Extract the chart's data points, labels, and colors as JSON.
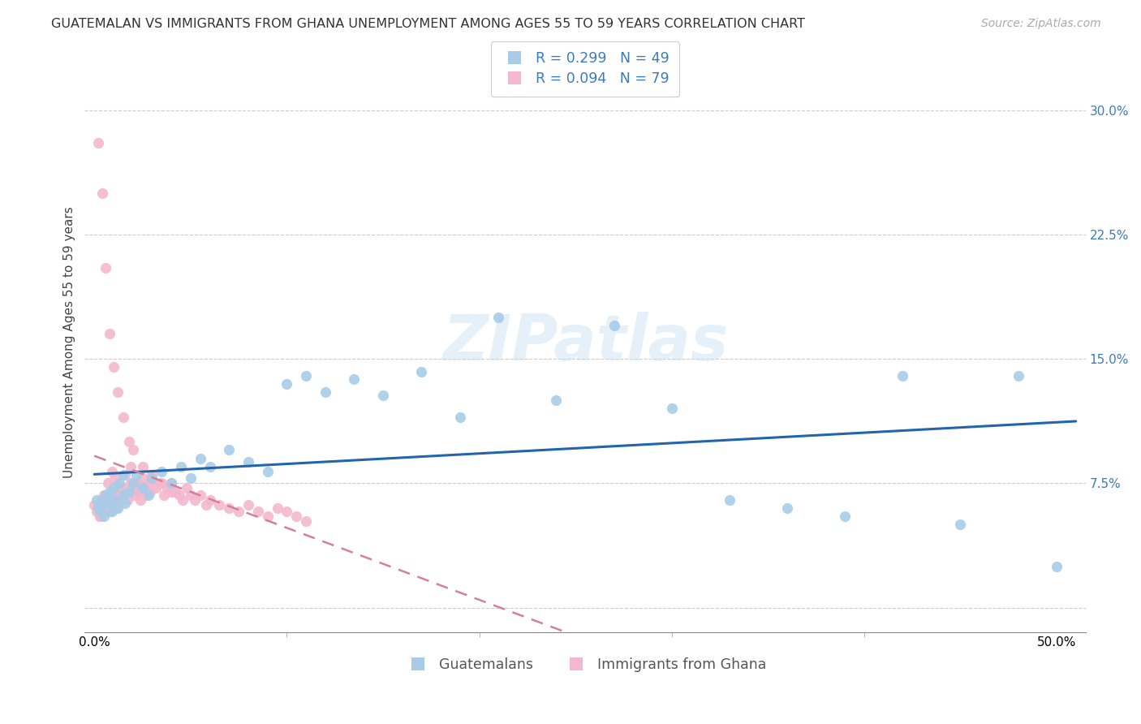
{
  "title": "GUATEMALAN VS IMMIGRANTS FROM GHANA UNEMPLOYMENT AMONG AGES 55 TO 59 YEARS CORRELATION CHART",
  "source": "Source: ZipAtlas.com",
  "ylabel_label": "Unemployment Among Ages 55 to 59 years",
  "yticks": [
    0.0,
    0.075,
    0.15,
    0.225,
    0.3
  ],
  "ytick_labels": [
    "",
    "7.5%",
    "15.0%",
    "22.5%",
    "30.0%"
  ],
  "xlim": [
    -0.005,
    0.515
  ],
  "ylim": [
    -0.015,
    0.335
  ],
  "watermark": "ZIPatlas",
  "legend_box": [
    {
      "label": "R = 0.299   N = 49",
      "color": "#a8cce8"
    },
    {
      "label": "R = 0.094   N = 79",
      "color": "#f4b8ce"
    }
  ],
  "legend_labels": [
    "Guatemalans",
    "Immigrants from Ghana"
  ],
  "blue_color": "#a8cce8",
  "pink_color": "#f4b8ce",
  "blue_line_color": "#2166ac",
  "pink_line_color": "#d4809a",
  "title_fontsize": 11.5,
  "axis_label_fontsize": 11,
  "tick_fontsize": 11,
  "source_fontsize": 10,
  "guatemalan_x": [
    0.001,
    0.002,
    0.003,
    0.004,
    0.005,
    0.006,
    0.007,
    0.008,
    0.009,
    0.01,
    0.011,
    0.012,
    0.013,
    0.015,
    0.016,
    0.018,
    0.02,
    0.022,
    0.025,
    0.028,
    0.03,
    0.035,
    0.04,
    0.045,
    0.05,
    0.055,
    0.06,
    0.07,
    0.08,
    0.09,
    0.1,
    0.11,
    0.12,
    0.135,
    0.15,
    0.17,
    0.19,
    0.21,
    0.24,
    0.27,
    0.3,
    0.33,
    0.36,
    0.39,
    0.42,
    0.45,
    0.48,
    0.5,
    0.015
  ],
  "guatemalan_y": [
    0.065,
    0.06,
    0.058,
    0.062,
    0.055,
    0.068,
    0.063,
    0.07,
    0.058,
    0.072,
    0.065,
    0.06,
    0.075,
    0.068,
    0.063,
    0.07,
    0.075,
    0.08,
    0.072,
    0.068,
    0.078,
    0.082,
    0.075,
    0.085,
    0.078,
    0.09,
    0.085,
    0.095,
    0.088,
    0.082,
    0.135,
    0.14,
    0.13,
    0.138,
    0.128,
    0.142,
    0.115,
    0.175,
    0.125,
    0.17,
    0.12,
    0.065,
    0.06,
    0.055,
    0.14,
    0.05,
    0.14,
    0.025,
    0.08
  ],
  "ghana_x": [
    0.0,
    0.001,
    0.002,
    0.003,
    0.004,
    0.005,
    0.006,
    0.007,
    0.008,
    0.009,
    0.01,
    0.011,
    0.012,
    0.013,
    0.014,
    0.015,
    0.016,
    0.017,
    0.018,
    0.019,
    0.02,
    0.021,
    0.022,
    0.023,
    0.024,
    0.025,
    0.026,
    0.027,
    0.028,
    0.029,
    0.03,
    0.032,
    0.034,
    0.036,
    0.038,
    0.04,
    0.042,
    0.044,
    0.046,
    0.048,
    0.05,
    0.052,
    0.055,
    0.058,
    0.06,
    0.065,
    0.07,
    0.075,
    0.08,
    0.085,
    0.09,
    0.095,
    0.1,
    0.105,
    0.11,
    0.002,
    0.004,
    0.006,
    0.008,
    0.01,
    0.012,
    0.015,
    0.018,
    0.02,
    0.025,
    0.03,
    0.035,
    0.04,
    0.002,
    0.003,
    0.005,
    0.007,
    0.009,
    0.011,
    0.013,
    0.016,
    0.019,
    0.022,
    0.027
  ],
  "ghana_y": [
    0.062,
    0.058,
    0.06,
    0.055,
    0.065,
    0.06,
    0.058,
    0.063,
    0.058,
    0.068,
    0.065,
    0.06,
    0.068,
    0.065,
    0.07,
    0.072,
    0.068,
    0.065,
    0.07,
    0.075,
    0.072,
    0.068,
    0.075,
    0.07,
    0.065,
    0.078,
    0.072,
    0.068,
    0.075,
    0.07,
    0.078,
    0.072,
    0.075,
    0.068,
    0.072,
    0.075,
    0.07,
    0.068,
    0.065,
    0.072,
    0.068,
    0.065,
    0.068,
    0.062,
    0.065,
    0.062,
    0.06,
    0.058,
    0.062,
    0.058,
    0.055,
    0.06,
    0.058,
    0.055,
    0.052,
    0.28,
    0.25,
    0.205,
    0.165,
    0.145,
    0.13,
    0.115,
    0.1,
    0.095,
    0.085,
    0.08,
    0.075,
    0.07,
    0.06,
    0.055,
    0.068,
    0.075,
    0.082,
    0.078,
    0.072,
    0.08,
    0.085,
    0.075,
    0.07
  ]
}
